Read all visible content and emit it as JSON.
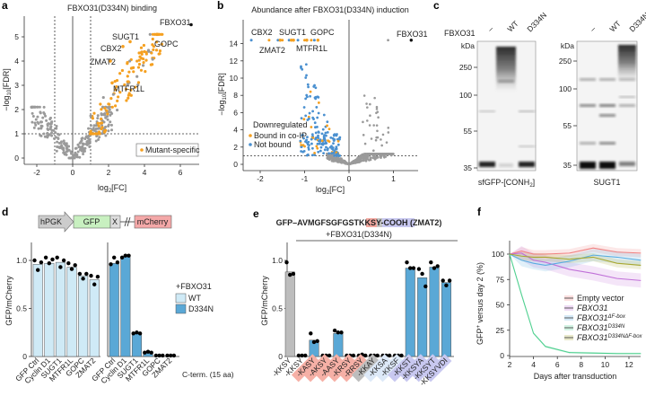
{
  "panel_labels": [
    "a",
    "b",
    "c",
    "d",
    "e",
    "f"
  ],
  "colors": {
    "orange": "#f5a020",
    "blue": "#4a90d0",
    "grey": "#9a9a9a",
    "black": "#111111",
    "wt_bar": "#cfeaf6",
    "mut_bar": "#5aa8d6",
    "ctrl_bar": "#bdbdbd"
  },
  "chart_data": [
    {
      "id": "a",
      "type": "scatter",
      "title": "FBXO31(D334N) binding",
      "xlabel": {
        "main": "log",
        "sub": "2",
        "end": "[FC]"
      },
      "ylabel": {
        "main": "−log",
        "sub": "10",
        "end": "[FDR]"
      },
      "xlim": [
        -2.7,
        7
      ],
      "ylim": [
        -0.3,
        5.8
      ],
      "xticks": [
        -2,
        0,
        2,
        4,
        6
      ],
      "yticks": [
        0,
        1,
        2,
        3,
        4,
        5
      ],
      "thresholds": {
        "log2fc": [
          -1,
          1
        ],
        "neglog10fdr": 1
      },
      "legend": {
        "label": "Mutant-specific",
        "placement": "bottom-right"
      },
      "labeled_points": [
        {
          "name": "FBXO31",
          "x": 6.6,
          "y": 5.5,
          "group": "bait"
        },
        {
          "name": "SUGT1",
          "x": 3.2,
          "y": 4.8,
          "group": "mutant-specific"
        },
        {
          "name": "GOPC",
          "x": 4.7,
          "y": 5.1,
          "group": "mutant-specific"
        },
        {
          "name": "CBX2",
          "x": 2.8,
          "y": 4.6,
          "group": "mutant-specific"
        },
        {
          "name": "ZMAT2",
          "x": 2.1,
          "y": 4.0,
          "group": "mutant-specific"
        },
        {
          "name": "MTFR1L",
          "x": 2.2,
          "y": 3.1,
          "group": "mutant-specific"
        }
      ]
    },
    {
      "id": "b",
      "type": "scatter",
      "title": "Abundance after FBXO31(D334N) induction",
      "xlabel": {
        "main": "log",
        "sub": "2",
        "end": "[FC]"
      },
      "ylabel": {
        "main": "−log",
        "sub": "10",
        "end": "[FDR]"
      },
      "xlim": [
        -2.4,
        1.6
      ],
      "ylim": [
        -0.5,
        15.5
      ],
      "xticks": [
        -2,
        -1,
        0,
        1
      ],
      "yticks": [
        0,
        2,
        4,
        6,
        8,
        10,
        12,
        14
      ],
      "thresholds": {
        "neglog10fdr": 1
      },
      "legend": {
        "title": "Downregulated",
        "items": [
          "Bound in co-IP",
          "Not bound"
        ],
        "placement": "bottom-left"
      },
      "labeled_points": [
        {
          "name": "FBXO31",
          "x": 1.4,
          "y": 14.4,
          "group": "bait"
        },
        {
          "name": "CBX2",
          "x": -1.55,
          "y": 14.4,
          "group": "bound"
        },
        {
          "name": "SUGT1",
          "x": -1.3,
          "y": 14.4,
          "group": "bound"
        },
        {
          "name": "GOPC",
          "x": -0.7,
          "y": 14.4,
          "group": "bound"
        },
        {
          "name": "ZMAT2",
          "x": -1.25,
          "y": 14.4,
          "group": "bound"
        },
        {
          "name": "MTFR1L",
          "x": -0.95,
          "y": 14.4,
          "group": "bound"
        }
      ]
    },
    {
      "id": "c",
      "type": "blot",
      "row_label": "FBXO31",
      "lanes": [
        "–",
        "WT",
        "D334N"
      ],
      "unit": "kDa",
      "blots": [
        {
          "caption_main": "sfGFP-[CONH",
          "caption_sub": "2",
          "caption_end": "]",
          "markers": [
            "250",
            "100",
            "55",
            "35"
          ]
        },
        {
          "caption_main": "SUGT1",
          "caption_sub": "",
          "caption_end": "",
          "markers": [
            "250",
            "100",
            "55",
            "35"
          ]
        }
      ]
    },
    {
      "id": "d",
      "type": "bar",
      "construct": {
        "promoter": "hPGK",
        "gfp": "GFP",
        "x": "X",
        "reporter": "mCherry"
      },
      "ylabel": "GFP/mCherry",
      "ylim": [
        0,
        1.2
      ],
      "yticks": [
        "0",
        "0.5",
        "1.0"
      ],
      "categories": [
        "GFP Ctrl",
        "Cyclin D1",
        "SUGT1",
        "MTFR1L",
        "GOPC",
        "ZMAT2"
      ],
      "xnote": "C-term. (15 aa)",
      "legend": {
        "title": "+FBXO31",
        "items": [
          "WT",
          "D334N"
        ],
        "placement": "right"
      },
      "series": [
        {
          "name": "WT",
          "values": [
            0.96,
            0.97,
            0.98,
            0.93,
            0.84,
            0.8
          ],
          "replicates": [
            [
              1.0,
              0.9,
              0.98
            ],
            [
              1.03,
              0.97,
              1.01
            ],
            [
              1.03,
              0.93,
              1.0
            ],
            [
              0.97,
              0.91,
              0.95
            ],
            [
              0.86,
              0.81,
              0.86
            ],
            [
              0.84,
              0.75,
              0.83
            ]
          ]
        },
        {
          "name": "D334N",
          "values": [
            0.97,
            1.04,
            0.24,
            0.04,
            0.01,
            0.01
          ],
          "replicates": [
            [
              0.96,
              1.03,
              0.98
            ],
            [
              1.03,
              1.05,
              1.05
            ],
            [
              0.24,
              0.25,
              0.24
            ],
            [
              0.04,
              0.05,
              0.04
            ],
            [
              0.01,
              0.01,
              0.01
            ],
            [
              0.01,
              0.01,
              0.01
            ]
          ]
        }
      ]
    },
    {
      "id": "e",
      "type": "bar",
      "header": {
        "pre": "GFP–AVMGFSGFGST",
        "kk": "KK",
        "s": "S",
        "cooh": "Y-COOH",
        "post": " (ZMAT2)"
      },
      "condition": "+FBXO31(D334N)",
      "ylabel": "GFP/mCherry",
      "ylim": [
        0,
        1.2
      ],
      "yticks": [
        "0",
        "0.5",
        "1.0"
      ],
      "categories": [
        "-KKSY",
        "-KKSY",
        "-KASY",
        "-AKSY",
        "-AASY",
        "-KRSY",
        "-RRSY",
        "-KKAY",
        "-KKSA",
        "-KKSF",
        "-KKST",
        "-KKSYA",
        "-KKSYT",
        "-KKSYVDI"
      ],
      "label_groups": [
        "none",
        "none",
        "red",
        "red",
        "red",
        "red",
        "red",
        "grey",
        "blue",
        "blue",
        "purple",
        "purple",
        "purple",
        "purple"
      ],
      "values": [
        0.88,
        0.01,
        0.17,
        0.01,
        0.24,
        0.01,
        0.01,
        0.01,
        0.01,
        0.01,
        0.92,
        0.82,
        0.93,
        0.77
      ],
      "replicates": [
        [
          0.98,
          0.85,
          0.86
        ],
        [
          0.01,
          0.01,
          0.01
        ],
        [
          0.24,
          0.15,
          0.16
        ],
        [
          0.01,
          0.01,
          0.01
        ],
        [
          0.27,
          0.25,
          0.25
        ],
        [
          0.01,
          0.01,
          0.01
        ],
        [
          0.01,
          0.02,
          0.01
        ],
        [
          0.01,
          0.01,
          0.01
        ],
        [
          0.01,
          0.01,
          0.01
        ],
        [
          0.01,
          0.01,
          0.01
        ],
        [
          0.98,
          0.92,
          0.92
        ],
        [
          0.91,
          0.86,
          0.73
        ],
        [
          0.98,
          0.92,
          0.94
        ],
        [
          0.79,
          0.74,
          0.79
        ]
      ]
    },
    {
      "id": "f",
      "type": "line",
      "xlabel": "Days after transduction",
      "ylabel": {
        "main": "GFP",
        "sup": "+",
        "end": " versus day 2 (%)"
      },
      "xlim": [
        2,
        13
      ],
      "ylim": [
        0,
        110
      ],
      "xticks": [
        2,
        4,
        6,
        8,
        10,
        12
      ],
      "yticks": [
        0,
        25,
        50,
        75,
        100
      ],
      "x": [
        2,
        3,
        4,
        5,
        7,
        9,
        11,
        13
      ],
      "series": [
        {
          "name": "Empty vector",
          "sup": "",
          "color": "#f08080",
          "values": [
            100,
            103,
            100,
            100,
            101,
            106,
            102,
            101
          ],
          "band": 4
        },
        {
          "name": "FBXO31",
          "sup": "",
          "color": "#c070d8",
          "values": [
            100,
            101,
            94,
            92,
            85,
            81,
            76,
            74
          ],
          "band": 7
        },
        {
          "name": "FBXO31",
          "sup": "ΔF-box",
          "color": "#5aade0",
          "values": [
            100,
            94,
            91,
            89,
            93,
            99,
            97,
            94
          ],
          "band": 6
        },
        {
          "name": "FBXO31",
          "sup": "D334N",
          "color": "#50d090",
          "values": [
            100,
            60,
            22,
            9,
            3,
            2.5,
            2,
            2
          ],
          "band": 1
        },
        {
          "name": "FBXO31",
          "sup": "D334NΔF-box",
          "color": "#a8a830",
          "values": [
            100,
            98,
            97,
            97,
            95,
            97,
            91,
            89
          ],
          "band": 4
        }
      ],
      "legend_placement": "center-right"
    }
  ]
}
